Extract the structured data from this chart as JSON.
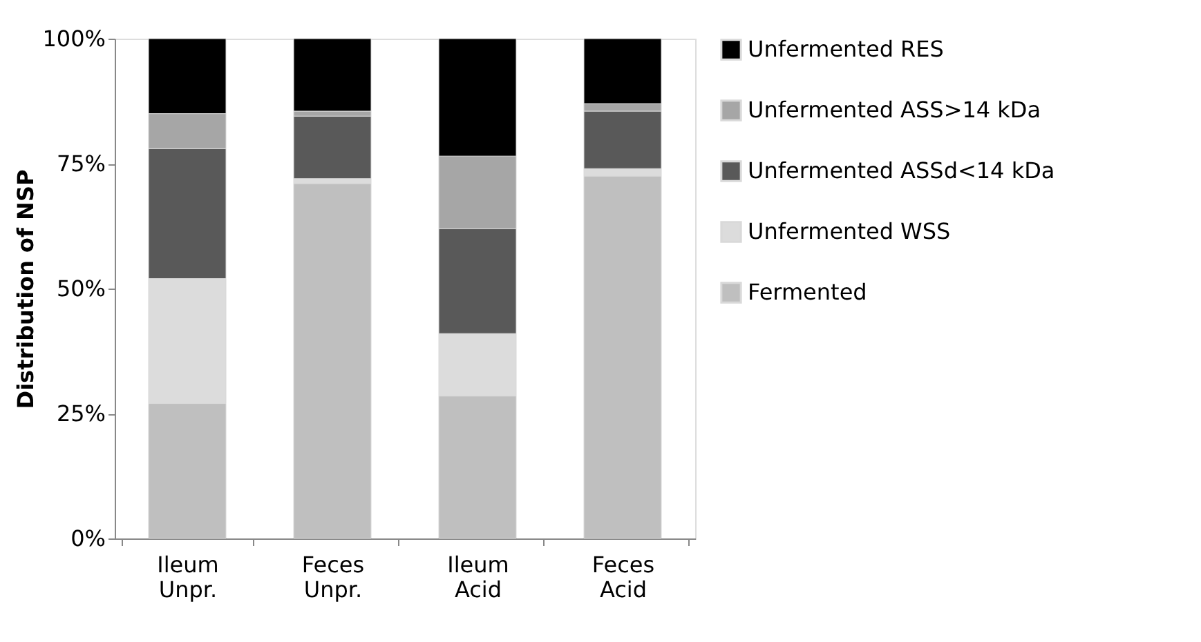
{
  "chart_data": {
    "type": "bar",
    "stacked": true,
    "ylabel": "Distribution of NSP",
    "categories": [
      "Ileum Unpr.",
      "Feces Unpr.",
      "Ileum Acid",
      "Feces Acid"
    ],
    "series": [
      {
        "name": "Fermented",
        "color": "#bfbfbf",
        "values": [
          27,
          71,
          28.5,
          72.5
        ]
      },
      {
        "name": "Unfermented WSS",
        "color": "#dcdcdc",
        "values": [
          25,
          1,
          12.5,
          1.5
        ]
      },
      {
        "name": "Unfermented ASSd<14 kDa",
        "color": "#595959",
        "values": [
          26,
          12.5,
          21,
          11.5
        ]
      },
      {
        "name": "Unfermented ASS>14 kDa",
        "color": "#a6a6a6",
        "values": [
          7,
          1,
          14.5,
          1.5
        ]
      },
      {
        "name": "Unfermented RES",
        "color": "#000000",
        "values": [
          15,
          14.5,
          23.5,
          13
        ]
      }
    ],
    "ylim": [
      0,
      100
    ],
    "yticks": [
      {
        "value": 0,
        "label": "0%"
      },
      {
        "value": 25,
        "label": "25%"
      },
      {
        "value": 50,
        "label": "50%"
      },
      {
        "value": 75,
        "label": "75%"
      },
      {
        "value": 100,
        "label": "100%"
      }
    ],
    "grid": false,
    "legend": "right"
  }
}
